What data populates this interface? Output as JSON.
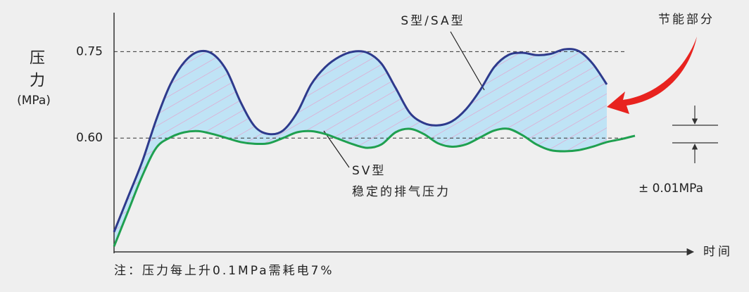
{
  "chart_data": {
    "type": "line",
    "y_label": "压力",
    "y_unit": "(MPa)",
    "x_label": "时间",
    "annotations": {
      "savings": "节能部分",
      "sv_desc": "稳定的排气压力",
      "tolerance": "± 0.01MPa",
      "note": "注：压力每上升0.1MPa需耗电7%"
    },
    "x": [
      0,
      1,
      2,
      3,
      4,
      5,
      6,
      7,
      8,
      9,
      10,
      11,
      12,
      13,
      14,
      15,
      16,
      17,
      18,
      19,
      20,
      21,
      22,
      23,
      24,
      25,
      26,
      27,
      28,
      29,
      30,
      31,
      32,
      33,
      34,
      35,
      36,
      37
    ],
    "xlim": [
      0,
      41
    ],
    "ylim": [
      0.4,
      0.82
    ],
    "yticks": [
      {
        "value": 0.6,
        "label": "0.60"
      },
      0.75
    ],
    "grid": true,
    "series": [
      {
        "name": "S型/SA型",
        "color": "#2e3a8c",
        "values": [
          0.437,
          0.498,
          0.559,
          0.632,
          0.693,
          0.732,
          0.75,
          0.746,
          0.717,
          0.662,
          0.62,
          0.607,
          0.613,
          0.644,
          0.693,
          0.723,
          0.741,
          0.75,
          0.748,
          0.729,
          0.687,
          0.644,
          0.626,
          0.622,
          0.629,
          0.65,
          0.683,
          0.723,
          0.744,
          0.748,
          0.744,
          0.746,
          0.754,
          0.751,
          0.729,
          0.693,
          null,
          null
        ]
      },
      {
        "name": "SV型",
        "color": "#1fa050",
        "values": [
          0.412,
          0.473,
          0.534,
          0.583,
          0.601,
          0.61,
          0.612,
          0.607,
          0.6,
          0.593,
          0.59,
          0.591,
          0.6,
          0.61,
          0.612,
          0.607,
          0.598,
          0.589,
          0.583,
          0.589,
          0.61,
          0.616,
          0.607,
          0.591,
          0.585,
          0.589,
          0.601,
          0.613,
          0.616,
          0.605,
          0.589,
          0.579,
          0.577,
          0.579,
          0.585,
          0.593,
          0.598,
          0.604
        ]
      }
    ]
  }
}
